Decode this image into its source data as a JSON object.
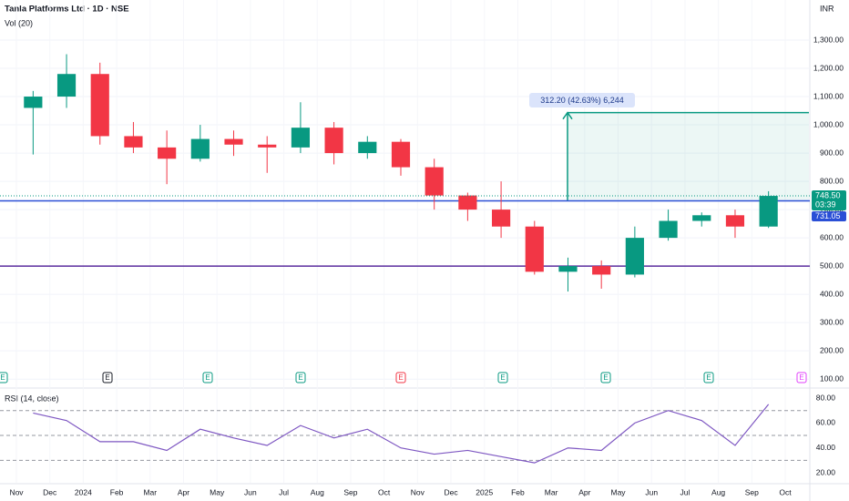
{
  "chart_data": {
    "type": "candlestick",
    "title": "Tanla Platforms Ltd · 1D · NSE",
    "indicator_volume": "Vol (20)",
    "currency": "INR",
    "colors": {
      "up": "#089981",
      "down": "#f23645"
    },
    "x": [
      "2023-11",
      "2023-12",
      "2024-01",
      "2024-02",
      "2024-03",
      "2024-04",
      "2024-05",
      "2024-06",
      "2024-07",
      "2024-08",
      "2024-09",
      "2024-10",
      "2024-11",
      "2024-12",
      "2025-01",
      "2025-02",
      "2025-03",
      "2025-04",
      "2025-05",
      "2025-06",
      "2025-07",
      "2025-08",
      "2025-09"
    ],
    "open": [
      1060,
      1100,
      1180,
      960,
      920,
      880,
      950,
      930,
      920,
      990,
      900,
      940,
      850,
      750,
      700,
      640,
      480,
      500,
      470,
      600,
      660,
      680,
      640
    ],
    "high": [
      1120,
      1250,
      1220,
      1010,
      980,
      1000,
      980,
      960,
      1080,
      1010,
      960,
      950,
      880,
      760,
      800,
      660,
      530,
      520,
      640,
      700,
      690,
      700,
      765
    ],
    "low": [
      895,
      1060,
      930,
      900,
      790,
      870,
      890,
      830,
      900,
      860,
      880,
      820,
      700,
      660,
      600,
      470,
      410,
      420,
      460,
      590,
      640,
      600,
      635
    ],
    "close": [
      1100,
      1180,
      960,
      920,
      880,
      950,
      930,
      920,
      990,
      900,
      940,
      850,
      750,
      700,
      640,
      480,
      500,
      470,
      600,
      660,
      680,
      640,
      748.5
    ],
    "ylim": [
      71.6,
      1441.9
    ],
    "yticks": [
      {
        "value": 1300,
        "label": "1,300.00"
      },
      {
        "value": 1200,
        "label": "1,200.00"
      },
      {
        "value": 1100,
        "label": "1,100.00"
      },
      {
        "value": 1000,
        "label": "1,000.00"
      },
      {
        "value": 900,
        "label": "900.00"
      },
      {
        "value": 800,
        "label": "800.00"
      },
      {
        "value": 700,
        "label": "700.00"
      },
      {
        "value": 600,
        "label": "600.00"
      },
      {
        "value": 500,
        "label": "500.00"
      },
      {
        "value": 400,
        "label": "400.00"
      },
      {
        "value": 300,
        "label": "300.00"
      },
      {
        "value": 200,
        "label": "200.00"
      },
      {
        "value": 100,
        "label": "100.00"
      }
    ],
    "xticks": [
      {
        "value": "2023-11",
        "label": "Nov"
      },
      {
        "value": "2023-12",
        "label": "Dec"
      },
      {
        "value": "2024-01",
        "label": "2024"
      },
      {
        "value": "2024-02",
        "label": "Feb"
      },
      {
        "value": "2024-03",
        "label": "Mar"
      },
      {
        "value": "2024-04",
        "label": "Apr"
      },
      {
        "value": "2024-05",
        "label": "May"
      },
      {
        "value": "2024-06",
        "label": "Jun"
      },
      {
        "value": "2024-07",
        "label": "Jul"
      },
      {
        "value": "2024-08",
        "label": "Aug"
      },
      {
        "value": "2024-09",
        "label": "Sep"
      },
      {
        "value": "2024-10",
        "label": "Oct"
      },
      {
        "value": "2024-11",
        "label": "Nov"
      },
      {
        "value": "2024-12",
        "label": "Dec"
      },
      {
        "value": "2025-01",
        "label": "2025"
      },
      {
        "value": "2025-02",
        "label": "Feb"
      },
      {
        "value": "2025-03",
        "label": "Mar"
      },
      {
        "value": "2025-04",
        "label": "Apr"
      },
      {
        "value": "2025-05",
        "label": "May"
      },
      {
        "value": "2025-06",
        "label": "Jun"
      },
      {
        "value": "2025-07",
        "label": "Jul"
      },
      {
        "value": "2025-08",
        "label": "Aug"
      },
      {
        "value": "2025-09",
        "label": "Sep"
      },
      {
        "value": "2025-10",
        "label": "Oct"
      }
    ],
    "hlines": [
      {
        "value": 731.05,
        "color": "#2a4fd6"
      },
      {
        "value": 500,
        "color": "#5b2d9e"
      }
    ],
    "last_price": {
      "value": 748.5,
      "label": "748.50"
    },
    "countdown": "03:39",
    "measure": {
      "label": "312.20 (42.63%) 6,244",
      "from": 731.05,
      "to": 1043.25,
      "color": "#089981"
    },
    "earnings_marker": "E",
    "rsi": {
      "title": "RSI (14, close)",
      "color": "#7e57c2",
      "values": [
        68,
        62,
        45,
        45,
        38,
        55,
        48,
        42,
        58,
        48,
        55,
        40,
        35,
        38,
        33,
        28,
        40,
        38,
        60,
        70,
        62,
        42,
        75
      ],
      "ylim": [
        12,
        86.6
      ],
      "yticks": [
        {
          "value": 80,
          "label": "80.00"
        },
        {
          "value": 60,
          "label": "60.00"
        },
        {
          "value": 40,
          "label": "40.00"
        },
        {
          "value": 20,
          "label": "20.00"
        }
      ],
      "levels": [
        70,
        50,
        30
      ]
    }
  }
}
